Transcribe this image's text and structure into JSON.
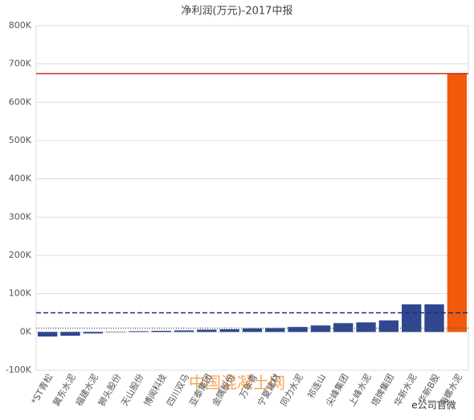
{
  "chart_data": {
    "type": "bar",
    "title": "净利润(万元)-2017中报",
    "categories": [
      "*ST青松",
      "冀东水泥",
      "福建水泥",
      "狮头股份",
      "天山股份",
      "博闻科技",
      "四川双马",
      "亚泰集团",
      "金隅股份",
      "万年青",
      "宁夏建材",
      "同力水泥",
      "祁连山",
      "尖峰集团",
      "上峰水泥",
      "塔牌集团",
      "华新水泥",
      "华新B股",
      "海螺水泥"
    ],
    "values": [
      -12000,
      -10000,
      -4000,
      -1000,
      2000,
      3000,
      4000,
      6000,
      7000,
      9000,
      10000,
      13000,
      17000,
      23000,
      25000,
      30000,
      72000,
      72000,
      675000
    ],
    "colors": [
      "#2e4790",
      "#2e4790",
      "#2e4790",
      "#2e4790",
      "#2e4790",
      "#2e4790",
      "#2e4790",
      "#2e4790",
      "#2e4790",
      "#2e4790",
      "#2e4790",
      "#2e4790",
      "#2e4790",
      "#2e4790",
      "#2e4790",
      "#2e4790",
      "#2e4790",
      "#2e4790",
      "#f05a0a"
    ],
    "reference_lines": [
      {
        "value": 675000,
        "color": "#c8321e",
        "style": "solid"
      },
      {
        "value": 50000,
        "color": "#1e2c78",
        "style": "dashed"
      },
      {
        "value": 10000,
        "color": "#555555",
        "style": "dotted"
      }
    ],
    "ylim": [
      -100000,
      800000
    ],
    "yticks": [
      {
        "value": -100000,
        "label": "-100K"
      },
      {
        "value": 0,
        "label": "0K"
      },
      {
        "value": 100000,
        "label": "100K"
      },
      {
        "value": 200000,
        "label": "200K"
      },
      {
        "value": 300000,
        "label": "300K"
      },
      {
        "value": 400000,
        "label": "400K"
      },
      {
        "value": 500000,
        "label": "500K"
      },
      {
        "value": 600000,
        "label": "600K"
      },
      {
        "value": 700000,
        "label": "700K"
      },
      {
        "value": 800000,
        "label": "800K"
      }
    ],
    "grid": true,
    "watermarks": [
      "中国混凝土网",
      "e公司官微"
    ]
  }
}
